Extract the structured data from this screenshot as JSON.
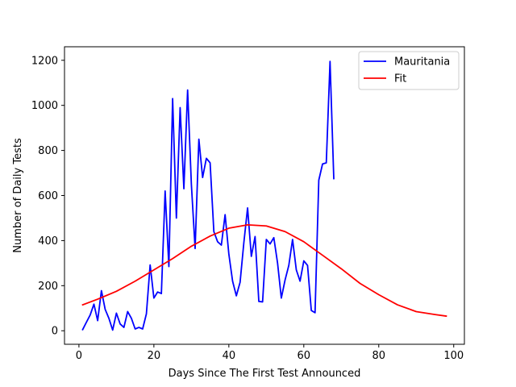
{
  "chart_data": {
    "type": "line",
    "xlabel": "Days Since The First Test Announced",
    "ylabel": "Number of Daily Tests",
    "xlim": [
      -3.85,
      102.85
    ],
    "ylim": [
      -60,
      1260
    ],
    "xticks": [
      0,
      20,
      40,
      60,
      80,
      100
    ],
    "yticks": [
      0,
      200,
      400,
      600,
      800,
      1000,
      1200
    ],
    "grid": false,
    "legend_position": "top-right",
    "series": [
      {
        "name": "Mauritania",
        "color": "#0000ff",
        "x": [
          1,
          2,
          3,
          4,
          5,
          6,
          7,
          8,
          9,
          10,
          11,
          12,
          13,
          14,
          15,
          16,
          17,
          18,
          19,
          20,
          21,
          22,
          23,
          24,
          25,
          26,
          27,
          28,
          29,
          30,
          31,
          32,
          33,
          34,
          35,
          36,
          37,
          38,
          39,
          40,
          41,
          42,
          43,
          44,
          45,
          46,
          47,
          48,
          49,
          50,
          51,
          52,
          53,
          54,
          55,
          56,
          57,
          58,
          59,
          60,
          61,
          62,
          63,
          64,
          65,
          66,
          67,
          68
        ],
        "y": [
          5,
          38,
          70,
          118,
          45,
          178,
          95,
          55,
          3,
          78,
          30,
          15,
          85,
          55,
          8,
          15,
          8,
          75,
          292,
          145,
          172,
          165,
          620,
          285,
          1030,
          500,
          990,
          630,
          1068,
          650,
          365,
          850,
          680,
          765,
          745,
          440,
          395,
          380,
          515,
          340,
          220,
          155,
          215,
          390,
          545,
          330,
          418,
          130,
          128,
          405,
          385,
          413,
          300,
          145,
          225,
          290,
          405,
          270,
          220,
          310,
          290,
          90,
          80,
          668,
          740,
          745,
          1195,
          675
        ]
      },
      {
        "name": "Fit",
        "color": "#ff0000",
        "x": [
          1,
          5,
          10,
          15,
          20,
          25,
          30,
          35,
          40,
          45,
          50,
          55,
          60,
          65,
          70,
          75,
          80,
          85,
          90,
          95,
          98
        ],
        "y": [
          115,
          140,
          175,
          220,
          270,
          320,
          375,
          420,
          455,
          470,
          465,
          440,
          395,
          335,
          275,
          210,
          160,
          115,
          85,
          72,
          65
        ]
      }
    ]
  }
}
